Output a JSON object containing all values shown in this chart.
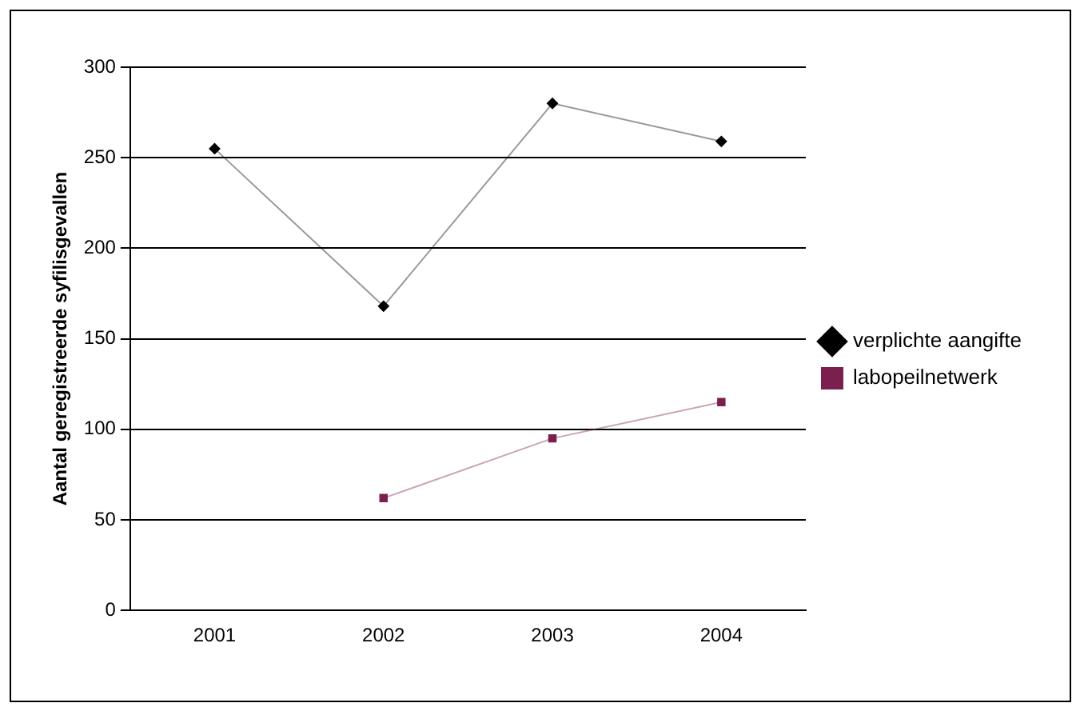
{
  "chart_data": {
    "type": "line",
    "ylabel": "Aantal geregistreerde syfilisgevallen",
    "categories": [
      "2001",
      "2002",
      "2003",
      "2004"
    ],
    "series": [
      {
        "name": "verplichte aangifte",
        "color": "#000000",
        "marker": "diamond",
        "values": [
          255,
          168,
          280,
          259
        ]
      },
      {
        "name": "labopeilnetwerk",
        "color": "#7b1f4f",
        "marker": "square",
        "values": [
          null,
          62,
          95,
          115
        ]
      }
    ],
    "ylim": [
      0,
      300
    ],
    "yticks": [
      0,
      50,
      100,
      150,
      200,
      250,
      300
    ],
    "grid": "y",
    "legend": "right"
  }
}
